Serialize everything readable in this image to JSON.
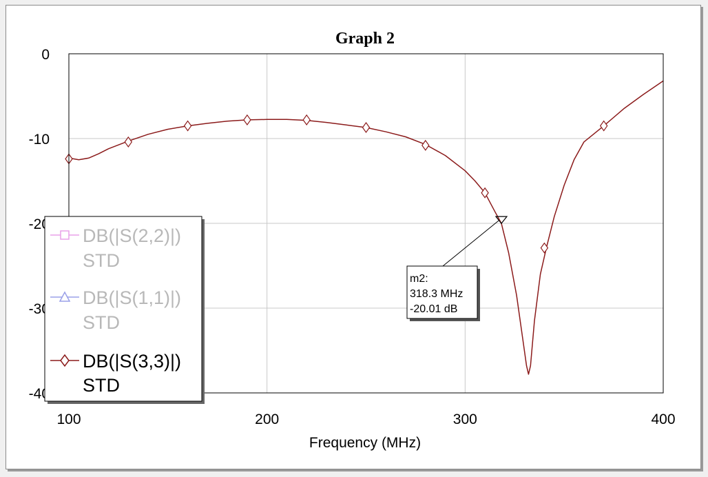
{
  "chart_data": {
    "type": "line",
    "title": "Graph 2",
    "xlabel": "Frequency (MHz)",
    "ylabel": "",
    "xlim": [
      100,
      400
    ],
    "ylim": [
      -40,
      0
    ],
    "x_ticks": [
      100,
      200,
      300,
      400
    ],
    "y_ticks": [
      0,
      -10,
      -20,
      -30,
      -40
    ],
    "grid": true,
    "legend_position": "bottom-left",
    "series": [
      {
        "name": "DB(|S(2,2)|)",
        "name_line2": "STD",
        "color": "#e8a0e8",
        "marker": "square",
        "active": false,
        "x": [],
        "values": []
      },
      {
        "name": "DB(|S(1,1)|)",
        "name_line2": "STD",
        "color": "#9aa0e8",
        "marker": "triangle",
        "active": false,
        "x": [],
        "values": []
      },
      {
        "name": "DB(|S(3,3)|)",
        "name_line2": "STD",
        "color": "#8b1a1a",
        "marker": "diamond",
        "active": true,
        "x": [
          100,
          105,
          110,
          115,
          120,
          130,
          140,
          150,
          160,
          170,
          180,
          190,
          200,
          210,
          220,
          230,
          240,
          250,
          260,
          270,
          280,
          290,
          300,
          305,
          310,
          315,
          318.3,
          322,
          326,
          329,
          331,
          332,
          333,
          335,
          338,
          341,
          345,
          350,
          355,
          360,
          370,
          380,
          390,
          400
        ],
        "values": [
          -12.3,
          -12.5,
          -12.3,
          -11.8,
          -11.2,
          -10.3,
          -9.5,
          -8.9,
          -8.5,
          -8.2,
          -7.95,
          -7.8,
          -7.75,
          -7.75,
          -7.85,
          -8.1,
          -8.4,
          -8.7,
          -9.2,
          -9.8,
          -10.7,
          -12.0,
          -13.8,
          -15.0,
          -16.4,
          -18.6,
          -20.01,
          -23.5,
          -28.5,
          -33.5,
          -36.8,
          -37.8,
          -36.8,
          -31.5,
          -26.0,
          -22.9,
          -19.2,
          -15.5,
          -12.5,
          -10.4,
          -8.5,
          -6.5,
          -4.8,
          -3.2
        ]
      }
    ],
    "series_markers": {
      "x": [
        100,
        130,
        160,
        190,
        220,
        250,
        280,
        310,
        340,
        370
      ],
      "values": [
        -12.4,
        -10.4,
        -8.5,
        -7.8,
        -7.8,
        -8.7,
        -10.8,
        -16.4,
        -22.9,
        -8.5
      ]
    },
    "annotation": {
      "name": "m2:",
      "freq": "318.3 MHz",
      "value": "-20.01 dB",
      "x": 318.3,
      "y": -20.01
    }
  }
}
